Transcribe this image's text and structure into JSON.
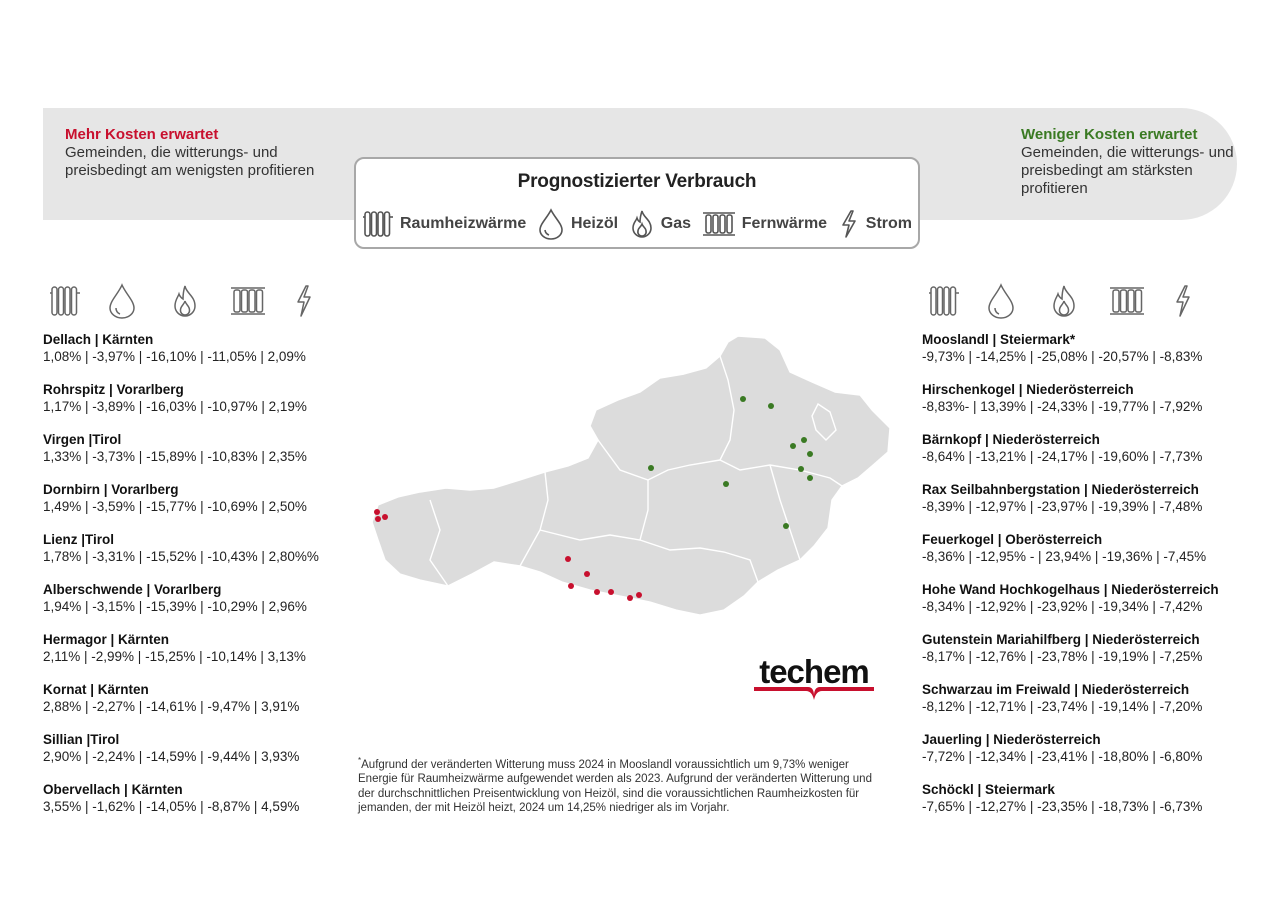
{
  "banner": {
    "left_title": "Mehr Kosten erwartet",
    "left_text": "Gemeinden, die witterungs- und preisbedingt am wenigsten profitieren",
    "right_title": "Weniger Kosten erwartet",
    "right_text": "Gemeinden, die witterungs- und preisbedingt am stärksten profitieren",
    "left_color": "#c8102e",
    "right_color": "#3a7a23"
  },
  "legend": {
    "title": "Prognostizierter Verbrauch",
    "items": [
      {
        "label": "Raumheizwärme",
        "icon": "radiator-icon"
      },
      {
        "label": "Heizöl",
        "icon": "oil-drop-icon"
      },
      {
        "label": "Gas",
        "icon": "flame-icon"
      },
      {
        "label": "Fernwärme",
        "icon": "district-heating-icon"
      },
      {
        "label": "Strom",
        "icon": "lightning-icon"
      }
    ]
  },
  "left_list": [
    {
      "name": "Dellach | Kärnten",
      "values": "1,08% | -3,97% | -16,10% | -11,05% | 2,09%"
    },
    {
      "name": "Rohrspitz | Vorarlberg",
      "values": "1,17% | -3,89% | -16,03% | -10,97% | 2,19%"
    },
    {
      "name": "Virgen |Tirol",
      "values": "1,33% | -3,73% | -15,89% | -10,83% | 2,35%"
    },
    {
      "name": "Dornbirn | Vorarlberg",
      "values": "1,49% | -3,59% | -15,77% | -10,69% | 2,50%"
    },
    {
      "name": "Lienz |Tirol",
      "values": "1,78% | -3,31% | -15,52% | -10,43% | 2,80%%"
    },
    {
      "name": "Alberschwende | Vorarlberg",
      "values": "1,94% | -3,15% | -15,39% | -10,29% | 2,96%"
    },
    {
      "name": "Hermagor | Kärnten",
      "values": "2,11% | -2,99% | -15,25% | -10,14% | 3,13%"
    },
    {
      "name": "Kornat | Kärnten",
      "values": "2,88% | -2,27% | -14,61% | -9,47% | 3,91%"
    },
    {
      "name": "Sillian |Tirol",
      "values": "2,90% | -2,24% | -14,59% | -9,44% | 3,93%"
    },
    {
      "name": "Obervellach | Kärnten",
      "values": "3,55% | -1,62% | -14,05% | -8,87% | 4,59%"
    }
  ],
  "right_list": [
    {
      "name": "Mooslandl | Steiermark*",
      "values": "-9,73% | -14,25% | -25,08% | -20,57% | -8,83%"
    },
    {
      "name": "Hirschenkogel | Niederösterreich",
      "values": "-8,83%- | 13,39% | -24,33% | -19,77% | -7,92%"
    },
    {
      "name": "Bärnkopf | Niederösterreich",
      "values": "-8,64% | -13,21% | -24,17% | -19,60% | -7,73%"
    },
    {
      "name": "Rax Seilbahnbergstation | Niederösterreich",
      "values": "-8,39% | -12,97% | -23,97% | -19,39% | -7,48%"
    },
    {
      "name": "Feuerkogel | Oberösterreich",
      "values": "-8,36% | -12,95% - | 23,94% | -19,36% | -7,45%"
    },
    {
      "name": "Hohe Wand Hochkogelhaus | Niederösterreich",
      "values": "-8,34% | -12,92% | -23,92% | -19,34% | -7,42%"
    },
    {
      "name": "Gutenstein Mariahilfberg | Niederösterreich",
      "values": "-8,17% | -12,76% | -23,78% | -19,19% | -7,25%"
    },
    {
      "name": "Schwarzau im Freiwald | Niederösterreich",
      "values": "-8,12% | -12,71% | -23,74% | -19,14% | -7,20%"
    },
    {
      "name": "Jauerling | Niederösterreich",
      "values": "-7,72% | -12,34% | -23,41% | -18,80% | -6,80%"
    },
    {
      "name": "Schöckl | Steiermark",
      "values": "-7,65% | -12,27% | -23,35% | -18,73% | -6,73%"
    }
  ],
  "footnote": {
    "marker": "*",
    "text": "Aufgrund der veränderten Witterung muss 2024 in Mooslandl voraussichtlich um 9,73% weniger Energie für Raumheizwärme aufgewendet werden als 2023. Aufgrund der veränderten Witterung und der durchschnittlichen Preisentwicklung von Heizöl, sind die voraussichtlichen Raumheizkosten für jemanden, der mit Heizöl heizt, 2024 um 14,25% niedriger als im Vorjahr."
  },
  "logo": {
    "text": "techem",
    "color": "#c8102e"
  },
  "map": {
    "fill": "#dcdcdc",
    "border": "#ffffff",
    "marker_red": "#c8102e",
    "marker_green": "#3a7a23"
  }
}
